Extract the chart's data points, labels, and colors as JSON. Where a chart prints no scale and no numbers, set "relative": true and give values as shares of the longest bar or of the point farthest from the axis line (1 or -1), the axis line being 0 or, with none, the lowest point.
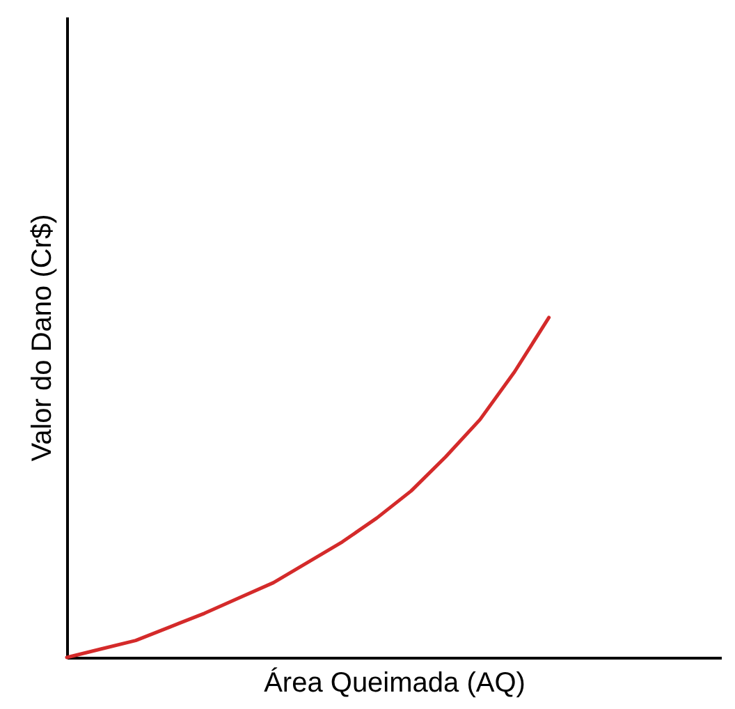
{
  "chart_data": {
    "type": "line",
    "relative": true,
    "xlabel": "Área Queimada  (AQ)",
    "ylabel": "Valor do Dano (Cr$)",
    "categories": [
      null,
      null,
      null,
      null,
      null,
      null,
      null,
      null,
      null,
      null,
      null,
      null,
      null,
      null,
      null,
      null,
      null,
      null,
      null,
      null
    ],
    "series": [
      {
        "color": "#d42a2a",
        "values": [
          0,
          0.025,
          0.05,
          0.09,
          0.13,
          0.175,
          0.22,
          0.28,
          0.34,
          0.41,
          0.49,
          0.59,
          0.7,
          0.84,
          1,
          null,
          null,
          null,
          null,
          null
        ]
      }
    ],
    "tick_labels": false,
    "grid": false,
    "marker": "none",
    "line_style": "solid"
  }
}
